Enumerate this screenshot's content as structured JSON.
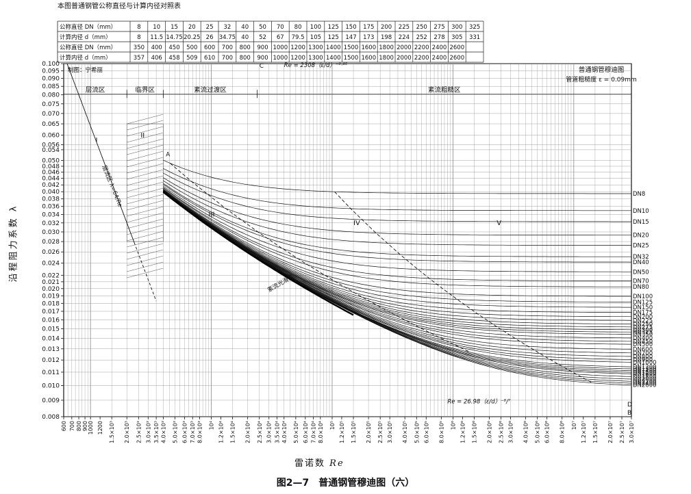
{
  "figure": {
    "caption": "图2—7　普通钢管穆迪图（六）",
    "table_title": "本图普通钢管公称直径与计算内径对照表",
    "drawer": "制图：宁希丽",
    "chart_title_line1": "普通钢管穆迪图",
    "chart_title_line2": "管道粗糙度 ε = 0.09mm",
    "ylabel": "沿程阻力系数 λ",
    "xlabel": "雷诺数",
    "xlabel_italic": "Re"
  },
  "table": {
    "rows": [
      {
        "label": "公称直径 DN（mm）",
        "values": [
          "8",
          "10",
          "15",
          "20",
          "25",
          "32",
          "40",
          "50",
          "70",
          "80",
          "100",
          "125",
          "150",
          "175",
          "200",
          "225",
          "250",
          "275",
          "300",
          "325"
        ]
      },
      {
        "label": "计算内径 d（mm）",
        "values": [
          "8",
          "11.5",
          "14.75",
          "20.25",
          "26",
          "34.75",
          "40",
          "52",
          "67",
          "79.5",
          "105",
          "125",
          "147",
          "173",
          "198",
          "224",
          "252",
          "278",
          "305",
          "331"
        ]
      },
      {
        "label": "公称直径 DN（mm）",
        "values": [
          "350",
          "400",
          "450",
          "500",
          "600",
          "700",
          "800",
          "900",
          "1000",
          "1200",
          "1300",
          "1400",
          "1500",
          "1600",
          "1800",
          "2000",
          "2200",
          "2400",
          "2600",
          ""
        ]
      },
      {
        "label": "计算内径 d（mm）",
        "values": [
          "357",
          "406",
          "458",
          "509",
          "610",
          "700",
          "800",
          "900",
          "1000",
          "1200",
          "1300",
          "1400",
          "1500",
          "1600",
          "1800",
          "2000",
          "2200",
          "2400",
          "2600",
          ""
        ]
      }
    ]
  },
  "chart_data": {
    "type": "line",
    "x_scale": "log",
    "y_scale": "log",
    "xlim": [
      600,
      30000000
    ],
    "ylim": [
      0.008,
      0.1
    ],
    "xlabel": "雷诺数 Re",
    "ylabel": "沿程阻力系数 λ",
    "roughness_mm": 0.09,
    "y_ticks": [
      "0.100",
      "0.095",
      "0.090",
      "0.085",
      "0.080",
      "0.075",
      "0.070",
      "0.065",
      "0.060",
      "0.056",
      "0.054",
      "0.050",
      "0.048",
      "0.046",
      "0.044",
      "0.042",
      "0.040",
      "0.038",
      "0.036",
      "0.034",
      "0.032",
      "0.030",
      "0.028",
      "0.026",
      "0.024",
      "0.022",
      "0.021",
      "0.020",
      "0.019",
      "0.018",
      "0.017",
      "0.016",
      "0.015",
      "0.014",
      "0.013",
      "0.012",
      "0.011",
      "0.010",
      "0.009",
      "0.008"
    ],
    "x_ticks": [
      "600",
      "700",
      "800",
      "900",
      "1000",
      "1200",
      "1.5×10³",
      "2.0×10³",
      "2.5×10³",
      "3.0×10³",
      "3.5×10³",
      "4.0×10³",
      "5.0×10³",
      "6.0×10³",
      "7.0×10³",
      "8.0×10³",
      "10⁴",
      "1.2×10⁴",
      "1.5×10⁴",
      "2.0×10⁴",
      "2.5×10⁴",
      "3.0×10⁴",
      "3.5×10⁴",
      "4.0×10⁴",
      "5.0×10⁴",
      "6.0×10⁴",
      "7.0×10⁴",
      "8.0×10⁴",
      "10⁵",
      "1.2×10⁵",
      "1.5×10⁵",
      "2.0×10⁵",
      "2.5×10⁵",
      "3.0×10⁵",
      "4.0×10⁵",
      "5.0×10⁵",
      "6.0×10⁵",
      "8.0×10⁵",
      "10⁶",
      "1.2×10⁶",
      "1.5×10⁶",
      "2.0×10⁶",
      "2.5×10⁶",
      "3.0×10⁶",
      "4.0×10⁶",
      "5.0×10⁶",
      "6.0×10⁶",
      "8.0×10⁶",
      "10⁷",
      "1.2×10⁷",
      "1.5×10⁷",
      "2.0×10⁷",
      "2.5×10⁷",
      "3.0×10⁷"
    ],
    "zone_labels": [
      "层流区",
      "临界区",
      "紊流过渡区",
      "紊流粗糙区"
    ],
    "zone_bounds_re": [
      2000,
      4000,
      24000
    ],
    "roman_labels": [
      "I",
      "II",
      "III",
      "IV",
      "V"
    ],
    "point_labels": [
      "A",
      "B",
      "C",
      "D"
    ],
    "laminar_label": "层流区 λ=64/Re",
    "smooth_label": "紊流光滑区",
    "boundary_C_label": "Re = 2308（ε/d）⁻⁰·⁸⁵",
    "boundary_D_label": "Re = 26.98（ε/d）⁻⁸/⁷",
    "series": [
      {
        "name": "DN8",
        "d_mm": 8
      },
      {
        "name": "DN10",
        "d_mm": 11.5
      },
      {
        "name": "DN15",
        "d_mm": 14.75
      },
      {
        "name": "DN20",
        "d_mm": 20.25
      },
      {
        "name": "DN25",
        "d_mm": 26
      },
      {
        "name": "DN32",
        "d_mm": 34.75
      },
      {
        "name": "DN40",
        "d_mm": 40
      },
      {
        "name": "DN50",
        "d_mm": 52
      },
      {
        "name": "DN70",
        "d_mm": 67
      },
      {
        "name": "DN80",
        "d_mm": 79.5
      },
      {
        "name": "DN100",
        "d_mm": 105
      },
      {
        "name": "DN125",
        "d_mm": 125
      },
      {
        "name": "DN150",
        "d_mm": 147
      },
      {
        "name": "DN175",
        "d_mm": 173
      },
      {
        "name": "DN200",
        "d_mm": 198
      },
      {
        "name": "DN225",
        "d_mm": 224
      },
      {
        "name": "DN250",
        "d_mm": 252
      },
      {
        "name": "DN275",
        "d_mm": 278
      },
      {
        "name": "DN300",
        "d_mm": 305
      },
      {
        "name": "DN325",
        "d_mm": 331
      },
      {
        "name": "DN350",
        "d_mm": 357
      },
      {
        "name": "DN400",
        "d_mm": 406
      },
      {
        "name": "DN450",
        "d_mm": 458
      },
      {
        "name": "DN500",
        "d_mm": 509
      },
      {
        "name": "DN600",
        "d_mm": 610
      },
      {
        "name": "DN700",
        "d_mm": 700
      },
      {
        "name": "DN800",
        "d_mm": 800
      },
      {
        "name": "DN900",
        "d_mm": 900
      },
      {
        "name": "DN1000",
        "d_mm": 1000
      },
      {
        "name": "DN1200",
        "d_mm": 1200
      },
      {
        "name": "DN1300",
        "d_mm": 1300
      },
      {
        "name": "DN1400",
        "d_mm": 1400
      },
      {
        "name": "DN1500",
        "d_mm": 1500
      },
      {
        "name": "DN1600",
        "d_mm": 1600
      },
      {
        "name": "DN1800",
        "d_mm": 1800
      },
      {
        "name": "DN2000",
        "d_mm": 2000
      },
      {
        "name": "DN2200",
        "d_mm": 2200
      },
      {
        "name": "DN2400",
        "d_mm": 2400
      },
      {
        "name": "DN2600",
        "d_mm": 2600
      }
    ]
  }
}
